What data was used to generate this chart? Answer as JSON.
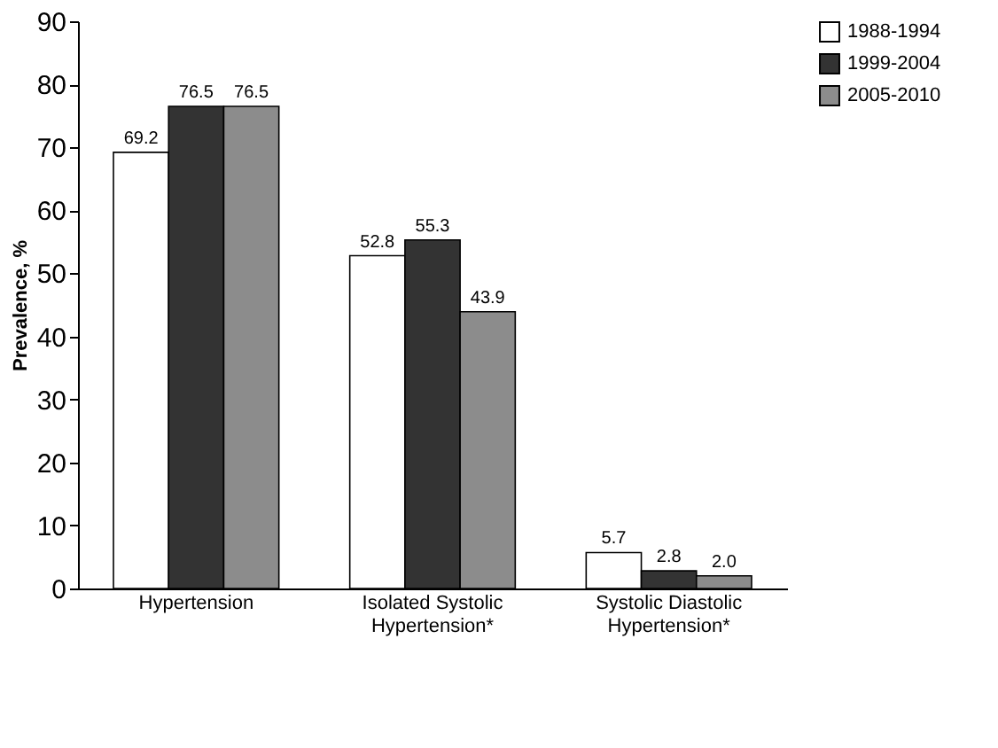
{
  "chart_data": {
    "type": "bar",
    "ylabel": "Prevalence, %",
    "categories": [
      "Hypertension",
      "Isolated Systolic Hypertension*",
      "Systolic Diastolic Hypertension*"
    ],
    "series": [
      {
        "name": "1988-1994",
        "color": "#ffffff",
        "values": [
          69.2,
          52.8,
          5.7
        ],
        "value_labels": [
          "69.2",
          "52.8",
          "5.7"
        ]
      },
      {
        "name": "1999-2004",
        "color": "#333333",
        "values": [
          76.5,
          55.3,
          2.8
        ],
        "value_labels": [
          "76.5",
          "55.3",
          "2.8"
        ]
      },
      {
        "name": "2005-2010",
        "color": "#8c8c8c",
        "values": [
          76.5,
          43.9,
          2.0
        ],
        "value_labels": [
          "76.5",
          "43.9",
          "2.0"
        ]
      }
    ],
    "ylim": [
      0,
      90
    ],
    "yticks": [
      0,
      10,
      20,
      30,
      40,
      50,
      60,
      70,
      80,
      90
    ],
    "grid": false,
    "legend": "right"
  }
}
